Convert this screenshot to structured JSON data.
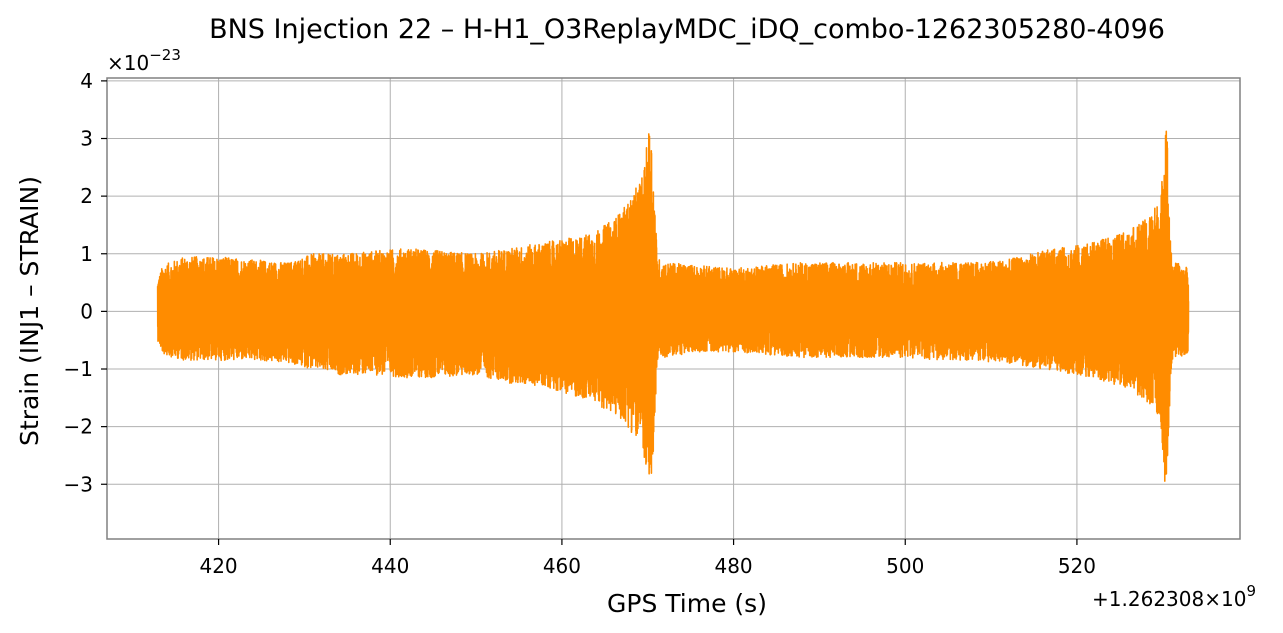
{
  "chart_data": {
    "type": "line",
    "title": "BNS Injection 22 – H-H1_O3ReplayMDC_iDQ_combo-1262305280-4096",
    "xlabel": "GPS Time (s)",
    "ylabel": "Strain (INJ1 – STRAIN)",
    "x_offset_label": "+1.262308×10",
    "x_offset_exp": "9",
    "y_scale_label": "×10",
    "y_scale_exp": "−23",
    "xlim": [
      407,
      539
    ],
    "ylim": [
      -3.95,
      4.05
    ],
    "x_ticks": [
      420,
      440,
      460,
      480,
      500,
      520
    ],
    "x_tick_labels": [
      "420",
      "440",
      "460",
      "480",
      "500",
      "520"
    ],
    "y_ticks": [
      -3,
      -2,
      -1,
      0,
      1,
      2,
      3,
      4
    ],
    "y_tick_labels": [
      "−3",
      "−2",
      "−1",
      "0",
      "1",
      "2",
      "3",
      "4"
    ],
    "grid": true,
    "series": [
      {
        "color": "#ff8c00",
        "envelope": {
          "x": [
            412.9,
            413.5,
            416,
            420,
            424,
            428,
            431,
            434,
            438,
            442,
            446,
            450,
            454,
            458,
            460,
            462,
            464,
            466,
            467.5,
            468.5,
            469.5,
            470.3,
            470.8,
            471.1,
            471.4,
            472,
            476,
            480,
            484,
            488,
            492,
            496,
            500,
            504,
            508,
            512,
            516,
            520,
            522,
            524,
            526,
            528,
            529,
            529.8,
            530.4,
            530.9,
            531.1,
            531.5,
            533
          ],
          "upper": [
            0.55,
            0.8,
            0.95,
            0.95,
            0.9,
            0.85,
            1.0,
            1.0,
            1.05,
            1.1,
            1.05,
            1.0,
            1.1,
            1.2,
            1.25,
            1.3,
            1.4,
            1.6,
            1.85,
            2.1,
            2.4,
            3.4,
            2.0,
            0.95,
            0.9,
            0.85,
            0.8,
            0.75,
            0.8,
            0.85,
            0.85,
            0.85,
            0.85,
            0.85,
            0.85,
            0.9,
            1.05,
            1.15,
            1.2,
            1.3,
            1.4,
            1.6,
            1.8,
            2.0,
            3.7,
            1.2,
            0.85,
            0.85,
            0.75
          ],
          "lower": [
            -0.5,
            -0.75,
            -0.85,
            -0.85,
            -0.85,
            -0.9,
            -1.0,
            -1.1,
            -1.1,
            -1.15,
            -1.15,
            -1.1,
            -1.25,
            -1.3,
            -1.4,
            -1.5,
            -1.6,
            -1.8,
            -1.95,
            -2.2,
            -2.4,
            -3.6,
            -2.0,
            -0.9,
            -0.8,
            -0.8,
            -0.7,
            -0.7,
            -0.75,
            -0.8,
            -0.8,
            -0.8,
            -0.8,
            -0.85,
            -0.85,
            -0.9,
            -1.0,
            -1.1,
            -1.15,
            -1.25,
            -1.35,
            -1.55,
            -1.75,
            -1.95,
            -3.35,
            -1.2,
            -0.85,
            -0.8,
            -0.75
          ]
        }
      }
    ]
  }
}
